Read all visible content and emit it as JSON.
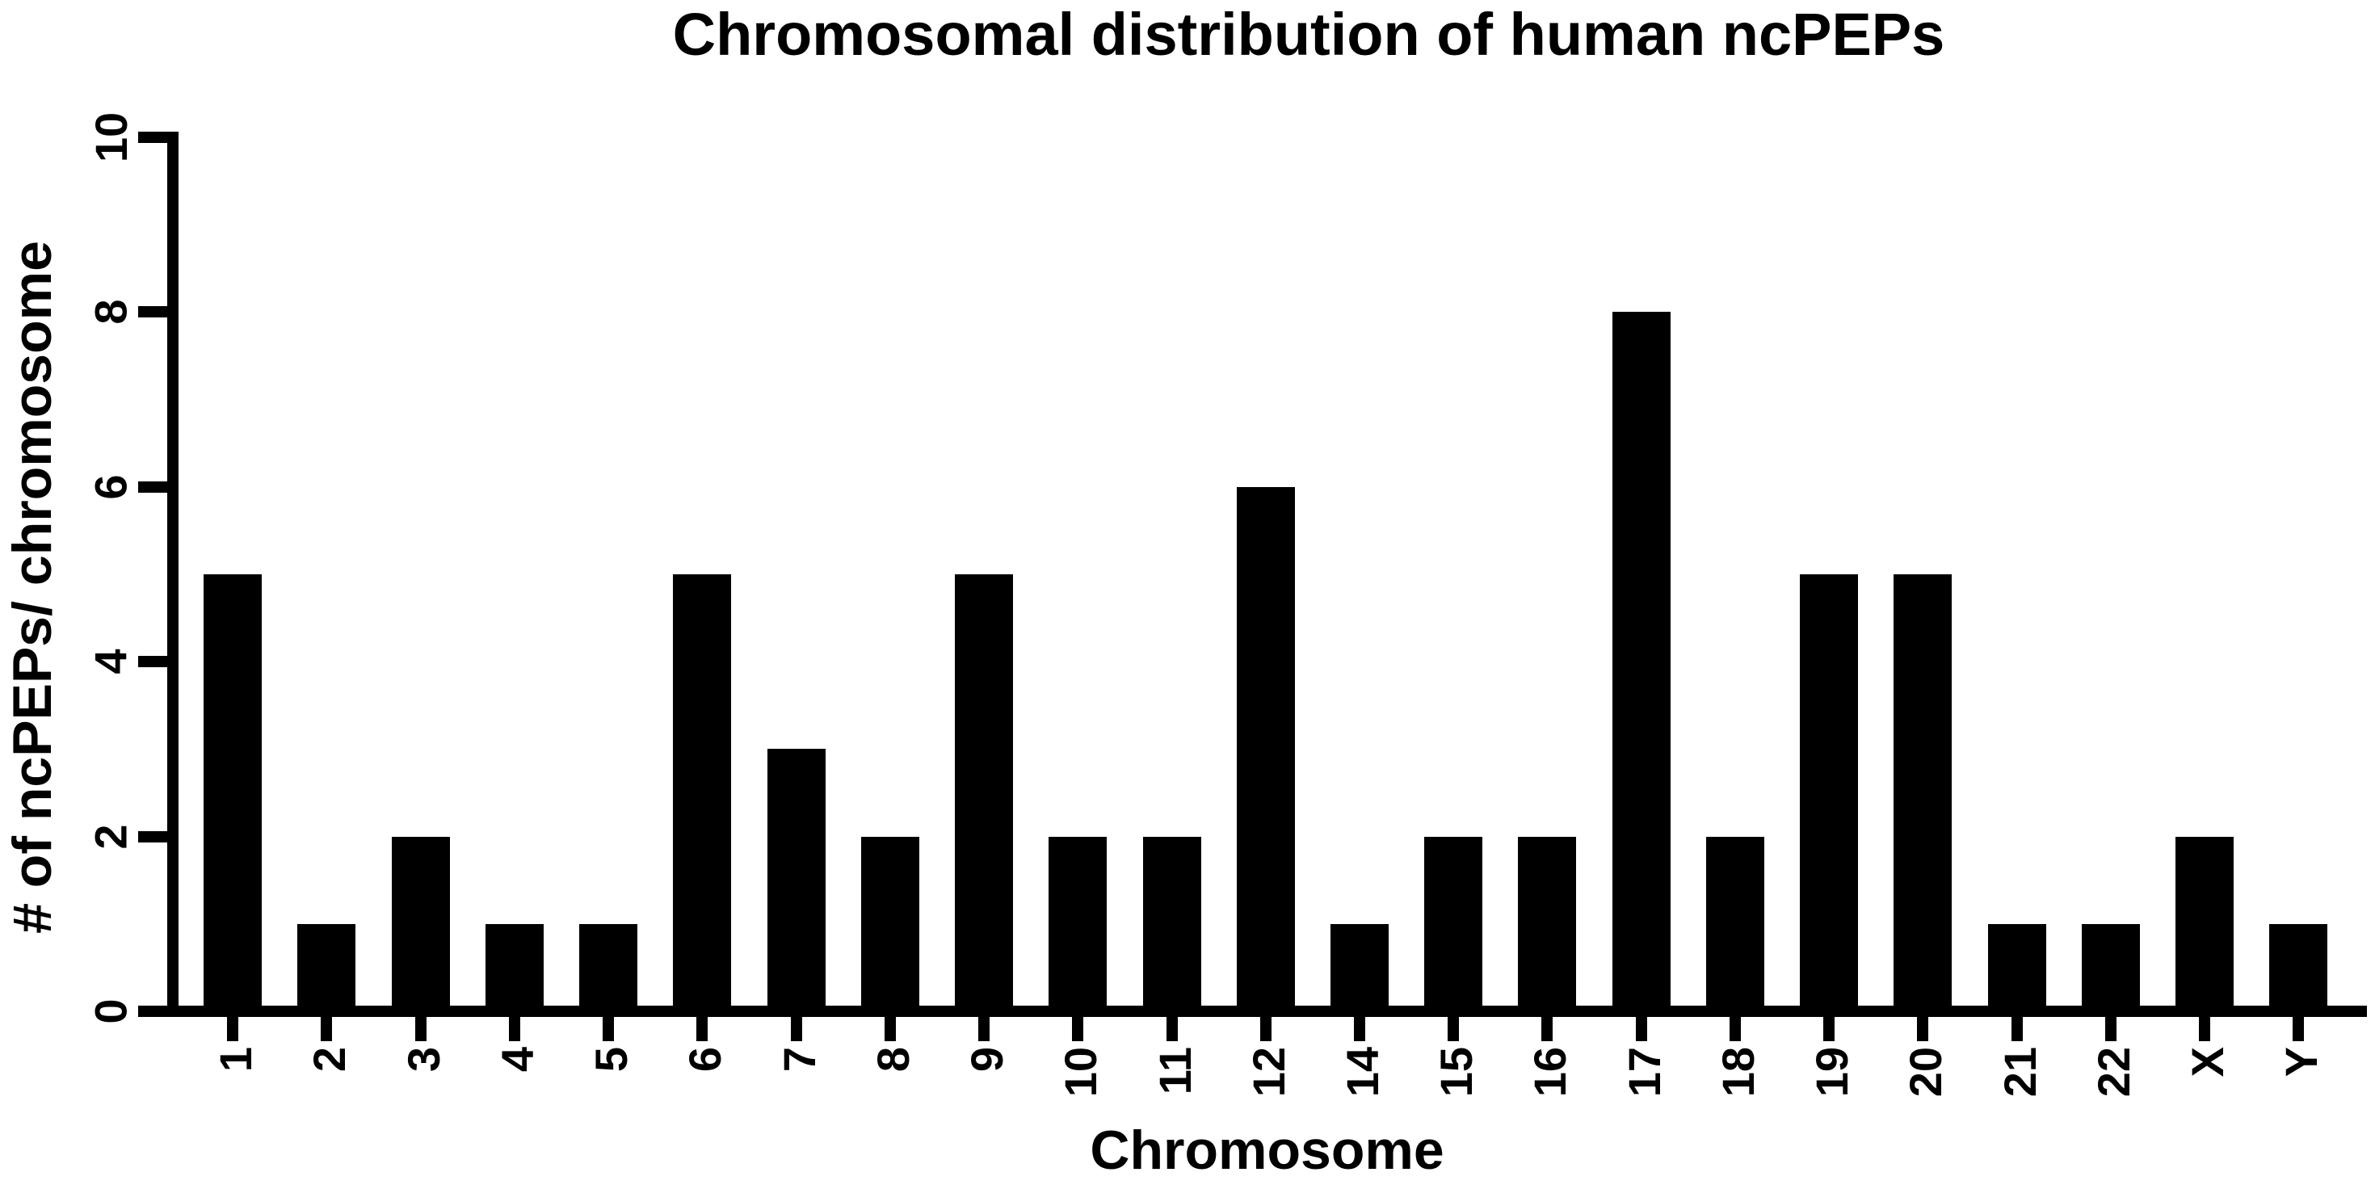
{
  "chart_data": {
    "type": "bar",
    "title": "Chromosomal distribution of human ncPEPs",
    "xlabel": "Chromosome",
    "ylabel": "# of ncPEPs/ chromosome",
    "categories": [
      "1",
      "2",
      "3",
      "4",
      "5",
      "6",
      "7",
      "8",
      "9",
      "10",
      "11",
      "12",
      "14",
      "15",
      "16",
      "17",
      "18",
      "19",
      "20",
      "21",
      "22",
      "X",
      "Y"
    ],
    "values": [
      5,
      1,
      2,
      1,
      1,
      5,
      3,
      2,
      5,
      2,
      2,
      6,
      1,
      2,
      2,
      8,
      2,
      5,
      5,
      1,
      1,
      2,
      1
    ],
    "ylim": [
      0,
      10
    ],
    "yticks": [
      0,
      2,
      4,
      6,
      8,
      10
    ],
    "bar_color": "#000000",
    "axis_color": "#000000",
    "text_color": "#000000",
    "background": "#ffffff",
    "grid": false,
    "legend": null
  }
}
